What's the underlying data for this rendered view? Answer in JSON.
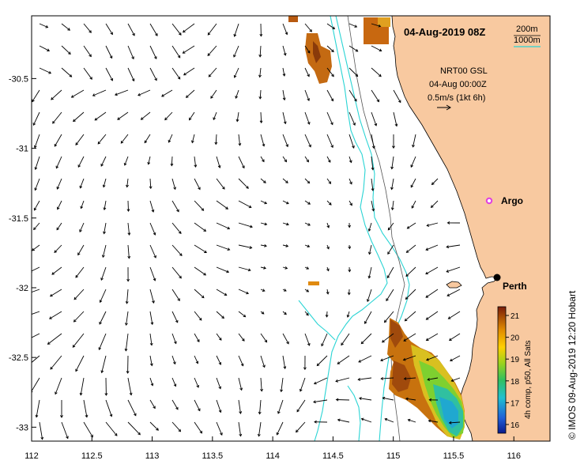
{
  "title": "04-Aug-2019 08Z",
  "contour_legend": {
    "label_200": "200m",
    "label_1000": "1000m",
    "color_200": "#000000",
    "color_1000": "#2ad4d4"
  },
  "current_info": {
    "line1": "NRT00 GSL",
    "line2": "04-Aug 00:00Z",
    "line3": "0.5m/s (1kt 6h)"
  },
  "places": {
    "argo": "Argo",
    "perth": "Perth"
  },
  "colorbar": {
    "label": "4h comp, p50, All Sats",
    "ticks": [
      "21",
      "20",
      "19",
      "18",
      "17",
      "16"
    ],
    "min": 15.6,
    "max": 21.4
  },
  "credit": "© IMOS 09-Aug-2019 12:20 Hobart",
  "axes": {
    "x_ticks": [
      "112",
      "112.5",
      "113",
      "113.5",
      "114",
      "114.5",
      "115",
      "115.5",
      "116"
    ],
    "y_ticks": [
      "-30.5",
      "-31",
      "-31.5",
      "-32",
      "-32.5",
      "-33"
    ],
    "x_range": [
      112,
      116.3
    ],
    "y_range": [
      -33.1,
      -30.05
    ]
  },
  "colors": {
    "land": "#f8c9a0",
    "isobath_1000": "#2ad4d4",
    "argo_marker": "#e040e0"
  }
}
